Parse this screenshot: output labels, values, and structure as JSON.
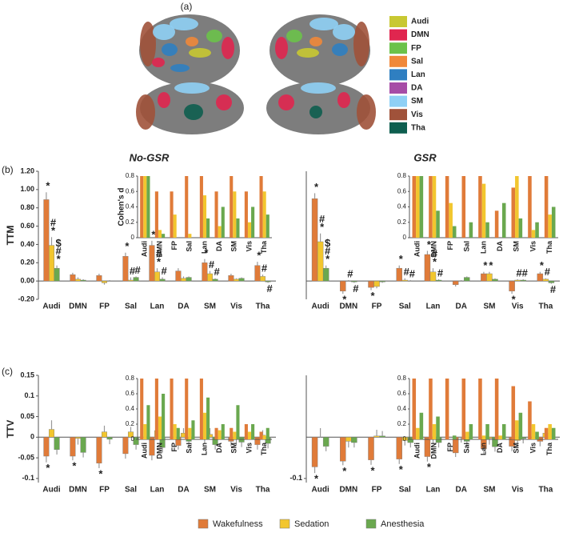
{
  "panel_labels": [
    "(a)",
    "(b)",
    "(c)"
  ],
  "networks": [
    {
      "name": "Audi",
      "color": "#c8c832"
    },
    {
      "name": "DMN",
      "color": "#e0264f"
    },
    {
      "name": "FP",
      "color": "#6cc24a"
    },
    {
      "name": "Sal",
      "color": "#f0883a"
    },
    {
      "name": "Lan",
      "color": "#2f7fc1"
    },
    {
      "name": "DA",
      "color": "#a64ca6"
    },
    {
      "name": "SM",
      "color": "#8fd0f5"
    },
    {
      "name": "Vis",
      "color": "#a0523a"
    },
    {
      "name": "Tha",
      "color": "#0e5e4f"
    }
  ],
  "chart_data": [
    {
      "type": "bar",
      "title": "No-GSR",
      "ylabel": "TTM",
      "categories": [
        "Audi",
        "DMN",
        "FP",
        "Sal",
        "Lan",
        "DA",
        "SM",
        "Vis",
        "Tha"
      ],
      "ylim": [
        -0.2,
        1.2
      ],
      "yticks": [
        {
          "value": -0.2,
          "label": "-0.20"
        },
        {
          "value": 0,
          "label": "0.00"
        },
        {
          "value": 0.2,
          "label": "0.20"
        },
        {
          "value": 0.4,
          "label": "0.40"
        },
        {
          "value": 0.6,
          "label": "0.60"
        },
        {
          "value": 0.8,
          "label": "0.80"
        },
        {
          "value": 1,
          "label": "1.00"
        },
        {
          "value": 1.2,
          "label": "1.20"
        }
      ],
      "series": [
        {
          "name": "Wakefulness",
          "color": "#e07b39",
          "values": [
            0.89,
            0.07,
            0.06,
            0.27,
            0.39,
            0.11,
            0.2,
            0.06,
            0.17
          ],
          "errors": [
            0.08,
            0.02,
            0.02,
            0.04,
            0.05,
            0.03,
            0.04,
            0.02,
            0.04
          ],
          "markers": [
            [
              "*"
            ],
            null,
            null,
            [
              "*"
            ],
            [
              "*"
            ],
            null,
            [
              "*"
            ],
            null,
            [
              "*"
            ]
          ]
        },
        {
          "name": "Sedation",
          "color": "#f2c62e",
          "values": [
            0.39,
            0.02,
            -0.02,
            0.01,
            0.1,
            0.03,
            0.08,
            0.02,
            0.05
          ],
          "errors": [
            0.09,
            0.02,
            0.02,
            0.03,
            0.04,
            0.02,
            0.03,
            0.01,
            0.02
          ],
          "markers": [
            [
              "#",
              "*"
            ],
            null,
            null,
            [
              "#"
            ],
            [
              "#",
              "*"
            ],
            null,
            [
              "#"
            ],
            null,
            [
              "#"
            ]
          ]
        },
        {
          "name": "Anesthesia",
          "color": "#6aa84f",
          "values": [
            0.14,
            0.01,
            0,
            0.04,
            0.02,
            0.04,
            0.02,
            0.03,
            -0.01
          ],
          "errors": [
            0.03,
            0.01,
            0.01,
            0.01,
            0.02,
            0.01,
            0.01,
            0.01,
            0.01
          ],
          "markers": [
            [
              "$",
              "#",
              "*"
            ],
            null,
            null,
            [
              "#"
            ],
            [
              "#"
            ],
            null,
            [
              "#"
            ],
            null,
            [
              "#"
            ]
          ]
        }
      ],
      "inset": {
        "ylabel": "Cohen's d",
        "categories": [
          "Audi",
          "DMN",
          "FP",
          "Sal",
          "Lan",
          "DA",
          "SM",
          "Vis",
          "Tha"
        ],
        "ylim": [
          0,
          0.8
        ],
        "yticks": [
          0,
          0.2,
          0.4,
          0.6,
          0.8
        ],
        "series": [
          {
            "color": "#e07b39",
            "values": [
              1.5,
              0.6,
              0.6,
              0.8,
              0.8,
              0.6,
              0.8,
              0.6,
              0.8
            ]
          },
          {
            "color": "#f2c62e",
            "values": [
              1.2,
              0.1,
              0.3,
              0.05,
              0.55,
              0.15,
              0.6,
              0.2,
              0.6
            ]
          },
          {
            "color": "#6aa84f",
            "values": [
              1,
              0.05,
              0,
              0,
              0.25,
              0.4,
              0.25,
              0.4,
              0.3
            ]
          }
        ]
      }
    },
    {
      "type": "bar",
      "title": "GSR",
      "categories": [
        "Audi",
        "DMN",
        "FP",
        "Sal",
        "Lan",
        "DA",
        "SM",
        "Vis",
        "Tha"
      ],
      "ylim": [
        -0.2,
        1.2
      ],
      "series": [
        {
          "name": "Wakefulness",
          "color": "#e07b39",
          "values": [
            0.9,
            -0.11,
            -0.07,
            0.14,
            0.29,
            -0.04,
            0.08,
            -0.11,
            0.08
          ],
          "errors": [
            0.06,
            0.03,
            0.03,
            0.03,
            0.04,
            0.02,
            0.02,
            0.03,
            0.02
          ],
          "markers": [
            [
              "*"
            ],
            [
              "*"
            ],
            [
              "*"
            ],
            [
              "*"
            ],
            [
              "*"
            ],
            null,
            [
              "*"
            ],
            [
              "*"
            ],
            [
              "*"
            ]
          ]
        },
        {
          "name": "Sedation",
          "color": "#f2c62e",
          "values": [
            0.43,
            0,
            -0.06,
            0.01,
            0.1,
            0,
            0.08,
            0.01,
            0.02
          ],
          "errors": [
            0.09,
            0.01,
            0.02,
            0.02,
            0.04,
            0.01,
            0.02,
            0.01,
            0.01
          ],
          "markers": [
            [
              "#",
              "*"
            ],
            [
              "#"
            ],
            null,
            [
              "#"
            ],
            [
              "#",
              "*"
            ],
            null,
            [
              "*"
            ],
            [
              "#"
            ],
            [
              "#"
            ]
          ]
        },
        {
          "name": "Anesthesia",
          "color": "#6aa84f",
          "values": [
            0.14,
            -0.01,
            -0.01,
            0,
            0.01,
            0.04,
            0.02,
            0.01,
            -0.02
          ],
          "errors": [
            0.03,
            0.01,
            0.01,
            0.01,
            0.01,
            0.01,
            0.01,
            0.01,
            0.01
          ],
          "markers": [
            [
              "$",
              "#",
              "*"
            ],
            [
              "#"
            ],
            null,
            [
              "#"
            ],
            [
              "#"
            ],
            null,
            null,
            [
              "#"
            ],
            [
              "#"
            ]
          ]
        }
      ],
      "inset": {
        "categories": [
          "Audi",
          "DMN",
          "FP",
          "Sal",
          "Lan",
          "DA",
          "SM",
          "Vis",
          "Tha"
        ],
        "ylim": [
          0,
          0.8
        ],
        "yticks": [
          0,
          0.2,
          0.4,
          0.6,
          0.8
        ],
        "series": [
          {
            "color": "#e07b39",
            "values": [
              1.5,
              0.8,
              0.8,
              0.8,
              0.8,
              0.35,
              0.65,
              0.8,
              0.8
            ]
          },
          {
            "color": "#f2c62e",
            "values": [
              1.2,
              0.8,
              0.45,
              0,
              0.7,
              0,
              0.8,
              0.1,
              0.3
            ]
          },
          {
            "color": "#6aa84f",
            "values": [
              1,
              0.35,
              0.15,
              0.2,
              0.2,
              0.45,
              0.25,
              0.2,
              0.4
            ]
          }
        ]
      }
    },
    {
      "type": "bar",
      "ylabel": "TTV",
      "categories": [
        "Audi",
        "DMN",
        "FP",
        "Sal",
        "Lan",
        "DA",
        "SM",
        "Vis",
        "Tha"
      ],
      "ylim": [
        -0.11,
        0.15
      ],
      "yticks": [
        -0.1,
        -0.05,
        0,
        0.05,
        0.1,
        0.15
      ],
      "series": [
        {
          "name": "Wakefulness",
          "color": "#e07b39",
          "values": [
            -0.046,
            -0.046,
            -0.063,
            -0.04,
            -0.044,
            -0.02,
            -0.004,
            -0.01,
            -0.018
          ],
          "errors": [
            0.015,
            0.01,
            0.012,
            0.012,
            0.012,
            0.01,
            0.012,
            0.012,
            0.012
          ],
          "markers": [
            [
              "*"
            ],
            [
              "*"
            ],
            [
              "*"
            ],
            null,
            null,
            null,
            null,
            null,
            null
          ]
        },
        {
          "name": "Sedation",
          "color": "#f2c62e",
          "values": [
            0.019,
            -0.003,
            0.013,
            0.013,
            0.016,
            0.01,
            0.007,
            -0.004,
            0.005
          ],
          "errors": [
            0.022,
            0.015,
            0.015,
            0.012,
            0.012,
            0.012,
            0.015,
            0.015,
            0.012
          ]
        },
        {
          "name": "Anesthesia",
          "color": "#6aa84f",
          "values": [
            -0.03,
            -0.037,
            -0.005,
            -0.018,
            -0.025,
            -0.01,
            -0.018,
            -0.012,
            -0.015
          ],
          "errors": [
            0.012,
            0.012,
            0.012,
            0.012,
            0.012,
            0.012,
            0.012,
            0.012,
            0.012
          ]
        }
      ],
      "inset": {
        "categories": [
          "Audi",
          "DMN",
          "FP",
          "Sal",
          "Lan",
          "DA",
          "SM",
          "Vis",
          "Tha"
        ],
        "ylim": [
          0,
          0.8
        ],
        "yticks": [
          0,
          0.2,
          0.4,
          0.6,
          0.8
        ],
        "series": [
          {
            "color": "#e07b39",
            "values": [
              1.2,
              0.8,
              0.8,
              0.8,
              0.8,
              0.15,
              0.15,
              0.2,
              0.1
            ]
          },
          {
            "color": "#f2c62e",
            "values": [
              0.2,
              0.3,
              0.2,
              0.15,
              0.35,
              0.12,
              0.1,
              0.1,
              0.05
            ]
          },
          {
            "color": "#6aa84f",
            "values": [
              0.45,
              0.6,
              0.15,
              0.25,
              0.55,
              0.2,
              0.45,
              0.2,
              0.15
            ]
          }
        ]
      }
    },
    {
      "type": "bar",
      "categories": [
        "Audi",
        "DMN",
        "FP",
        "Sal",
        "Lan",
        "DA",
        "SM",
        "Vis",
        "Tha"
      ],
      "ylim": [
        -0.11,
        0.15
      ],
      "yticks": [
        -0.1
      ],
      "series": [
        {
          "name": "Wakefulness",
          "color": "#e07b39",
          "values": [
            -0.072,
            -0.058,
            -0.055,
            -0.053,
            -0.047,
            -0.038,
            -0.028,
            -0.022,
            -0.01
          ],
          "errors": [
            0.015,
            0.01,
            0.012,
            0.012,
            0.012,
            0.01,
            0.012,
            0.012,
            0.012
          ],
          "markers": [
            [
              "*"
            ],
            [
              "*"
            ],
            [
              "*"
            ],
            [
              "*"
            ],
            [
              "*"
            ],
            null,
            null,
            null,
            null
          ]
        },
        {
          "name": "Sedation",
          "color": "#f2c62e",
          "values": [
            0,
            -0.01,
            0.003,
            -0.008,
            -0.005,
            -0.001,
            -0.003,
            -0.008,
            0.01
          ],
          "errors": [
            0.022,
            0.015,
            0.015,
            0.012,
            0.012,
            0.012,
            0.015,
            0.015,
            0.012
          ]
        },
        {
          "name": "Anesthesia",
          "color": "#6aa84f",
          "values": [
            -0.022,
            -0.013,
            0.003,
            -0.013,
            -0.013,
            -0.01,
            -0.023,
            -0.003,
            0.008
          ],
          "errors": [
            0.012,
            0.012,
            0.012,
            0.012,
            0.012,
            0.012,
            0.012,
            0.012,
            0.012
          ]
        }
      ],
      "inset": {
        "categories": [
          "Audi",
          "DMN",
          "FP",
          "Sal",
          "Lan",
          "DA",
          "SM",
          "Vis",
          "Tha"
        ],
        "ylim": [
          0,
          0.8
        ],
        "yticks": [
          0,
          0.2,
          0.4,
          0.6,
          0.8
        ],
        "series": [
          {
            "color": "#e07b39",
            "values": [
              1.2,
              0.8,
              0.8,
              0.8,
              0.8,
              0.8,
              0.7,
              0.5,
              0.15
            ]
          },
          {
            "color": "#f2c62e",
            "values": [
              0.15,
              0.2,
              0,
              0.1,
              0.05,
              0.05,
              0.25,
              0.2,
              0.2
            ]
          },
          {
            "color": "#6aa84f",
            "values": [
              0.35,
              0.3,
              0.05,
              0.2,
              0.2,
              0.2,
              0.35,
              0.1,
              0.15
            ]
          }
        ]
      }
    }
  ]
}
